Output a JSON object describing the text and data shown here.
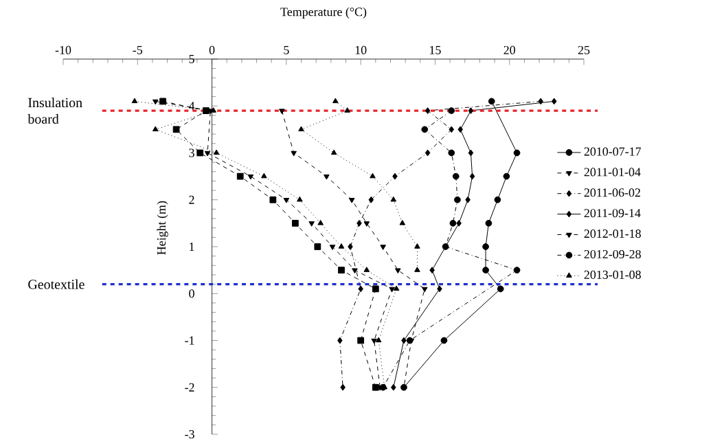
{
  "chart_data": {
    "type": "line",
    "xlabel": "Temperature (°C)",
    "ylabel": "Height (m)",
    "xlim": [
      -10,
      25
    ],
    "xticks": [
      -10,
      -5,
      0,
      5,
      10,
      15,
      20,
      25
    ],
    "ylim": [
      -3,
      5
    ],
    "yticks": [
      -3,
      -2,
      -1,
      0,
      1,
      2,
      3,
      4,
      5
    ],
    "grid": false,
    "legend": "right",
    "ref_lines": [
      {
        "axis": "y",
        "value": 3.9,
        "label": "Insulation board",
        "color": "#e8242a",
        "line_style": "dashed"
      },
      {
        "axis": "y",
        "value": 0.2,
        "label": "Geotextile",
        "color": "#1f2fd0",
        "line_style": "dashed"
      }
    ],
    "series": [
      {
        "name": "2010-07-17",
        "color": "#000000",
        "marker": "circle",
        "line_style": "solid",
        "x": [
          18.8,
          20.5,
          19.8,
          19.2,
          18.6,
          18.4,
          18.4,
          19.4,
          15.6,
          12.9
        ],
        "values": [
          4.1,
          3.0,
          2.5,
          2.0,
          1.5,
          1.0,
          0.5,
          0.1,
          -1,
          -2
        ]
      },
      {
        "name": "2011-01-04",
        "color": "#000000",
        "marker": "triangle down",
        "line_style": "dashed",
        "x": [
          4.7,
          5.5,
          7.7,
          9.4,
          10.4,
          11.5,
          12.5,
          14.3,
          13.4,
          12.9
        ],
        "values": [
          3.9,
          3.0,
          2.5,
          2.0,
          1.5,
          1.0,
          0.5,
          0.1,
          -1,
          -2
        ]
      },
      {
        "name": "2011-06-02",
        "color": "#000000",
        "marker": "diamond",
        "line_style": "dashdot",
        "x": [
          22.1,
          14.5,
          16.1,
          14.5,
          12.3,
          10.7,
          9.9,
          9.3,
          10.0,
          8.6,
          8.8
        ],
        "values": [
          4.1,
          3.9,
          3.5,
          3.0,
          2.5,
          2.0,
          1.5,
          1.0,
          0.1,
          -1,
          -2
        ]
      },
      {
        "name": "2011-09-14",
        "color": "#000000",
        "marker": "diamond",
        "line_style": "solid",
        "x": [
          23.0,
          17.4,
          16.7,
          17.4,
          17.5,
          17.2,
          16.6,
          14.8,
          15.3,
          12.9,
          12.2
        ],
        "values": [
          4.1,
          3.9,
          3.5,
          3.0,
          2.5,
          2.0,
          1.5,
          0.5,
          0.1,
          -1,
          -2
        ]
      },
      {
        "name": "2012-01-18",
        "color": "#000000",
        "marker": "triangle down",
        "line_style": "dashed",
        "x": [
          -3.8,
          -0.1,
          -0.3,
          2.6,
          5.0,
          6.7,
          8.1,
          9.6,
          12.1,
          10.9,
          11.3
        ],
        "values": [
          4.1,
          3.9,
          3.0,
          2.5,
          2.0,
          1.5,
          1.0,
          0.5,
          0.1,
          -1,
          -2
        ]
      },
      {
        "name": "2012-09-28",
        "color": "#000000",
        "marker": "circle",
        "line_style": "dashdot",
        "x": [
          16.1,
          14.3,
          16.1,
          16.4,
          16.5,
          16.2,
          15.7,
          20.5,
          13.3,
          11.5
        ],
        "values": [
          3.9,
          3.5,
          3.0,
          2.5,
          2.0,
          1.5,
          1.0,
          0.5,
          -1,
          -2
        ]
      },
      {
        "name": "2013-01-08",
        "color": "#000000",
        "marker": "triangle",
        "line_style": "dotted",
        "x": [
          -5.2,
          0.1,
          -3.8,
          0.3,
          3.5,
          5.9,
          7.3,
          8.7,
          10.4,
          12.4,
          11.2,
          11.6
        ],
        "values": [
          4.1,
          3.9,
          3.5,
          3.0,
          2.5,
          2.0,
          1.5,
          1.0,
          0.5,
          0.1,
          -1,
          -2
        ]
      },
      {
        "color": "#000000",
        "marker": "square",
        "line_style": "dashed",
        "x": [
          -3.3,
          -0.4,
          -2.4,
          -0.8,
          1.9,
          4.1,
          5.6,
          7.1,
          8.7,
          11.0,
          10.0,
          11.0
        ],
        "values": [
          4.1,
          3.9,
          3.5,
          3.0,
          2.5,
          2.0,
          1.5,
          1.0,
          0.5,
          0.1,
          -1,
          -2
        ]
      },
      {
        "color": "#000000",
        "marker": "triangle",
        "line_style": "dotted",
        "x": [
          8.3,
          9.1,
          6.0,
          8.2,
          10.8,
          12.2,
          12.8,
          13.8,
          13.8
        ],
        "values": [
          4.1,
          3.9,
          3.5,
          3.0,
          2.5,
          2.0,
          1.5,
          1.0,
          0.5
        ]
      }
    ]
  }
}
